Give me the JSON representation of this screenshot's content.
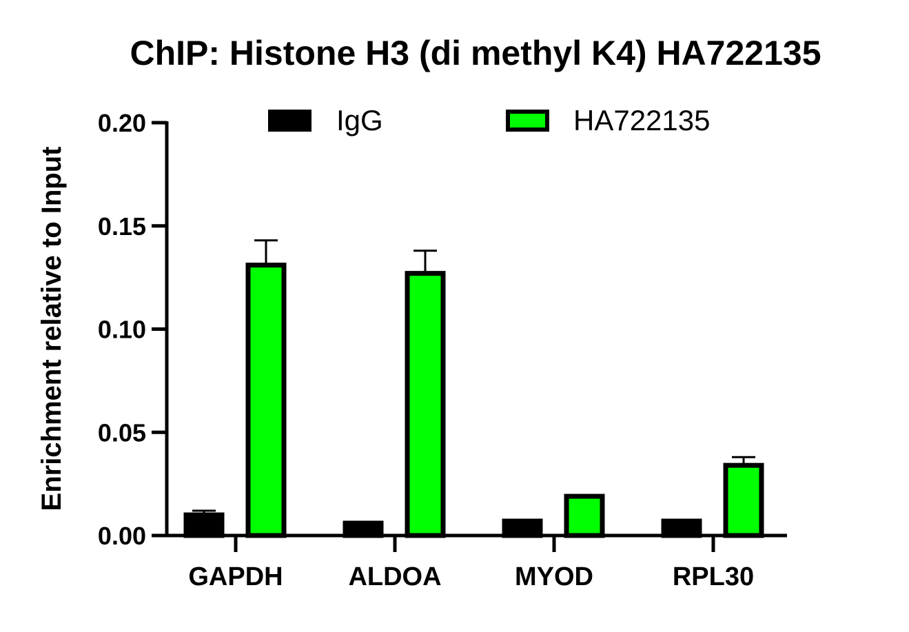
{
  "chart_data": {
    "type": "bar",
    "title": "ChIP: Histone H3 (di methyl K4) HA722135",
    "ylabel": "Enrichment relative to Input",
    "xlabel": "",
    "ylim": [
      0,
      0.2
    ],
    "yticks": [
      "0.00",
      "0.05",
      "0.10",
      "0.15",
      "0.20"
    ],
    "categories": [
      "GAPDH",
      "ALDOA",
      "MYOD",
      "RPL30"
    ],
    "series": [
      {
        "name": "IgG",
        "color": "#000000",
        "values": [
          0.01,
          0.006,
          0.007,
          0.007
        ],
        "errors": [
          0.002,
          0.0005,
          0.0005,
          0.0005
        ]
      },
      {
        "name": "HA722135",
        "color": "#00ff00",
        "values": [
          0.131,
          0.127,
          0.019,
          0.034
        ],
        "errors": [
          0.012,
          0.011,
          0.0005,
          0.004
        ]
      }
    ],
    "legend": "top-center",
    "grid": false
  }
}
